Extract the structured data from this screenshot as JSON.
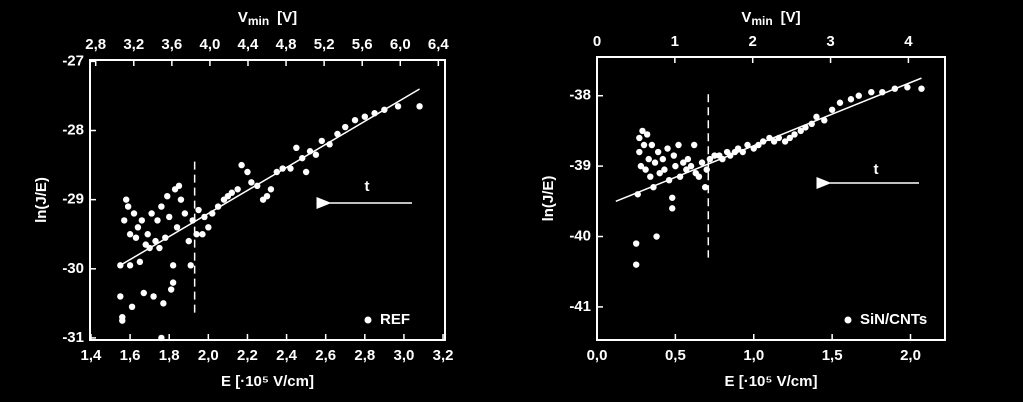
{
  "chart_data": [
    {
      "type": "scatter",
      "xlabel": "E [·10⁵ V/cm]",
      "ylabel": "ln(J/E)",
      "x2label": "V",
      "x2label_sub": "min",
      "x2label_unit": "[V]",
      "xlim": [
        1.395,
        3.21
      ],
      "xticks": [
        {
          "value": 1.4,
          "label": "1,4"
        },
        {
          "value": 1.6,
          "label": "1,6"
        },
        {
          "value": 1.8,
          "label": "1,8"
        },
        {
          "value": 2.0,
          "label": "2,0"
        },
        {
          "value": 2.2,
          "label": "2,2"
        },
        {
          "value": 2.4,
          "label": "2,4"
        },
        {
          "value": 2.6,
          "label": "2,6"
        },
        {
          "value": 2.8,
          "label": "2,8"
        },
        {
          "value": 3.0,
          "label": "3,0"
        },
        {
          "value": 3.2,
          "label": "3,2"
        }
      ],
      "x2lim": [
        2.74,
        6.47
      ],
      "x2ticks": [
        {
          "value": 2.8,
          "label": "2,8"
        },
        {
          "value": 3.2,
          "label": "3,2"
        },
        {
          "value": 3.6,
          "label": "3,6"
        },
        {
          "value": 4.0,
          "label": "4,0"
        },
        {
          "value": 4.4,
          "label": "4,4"
        },
        {
          "value": 4.8,
          "label": "4,8"
        },
        {
          "value": 5.2,
          "label": "5,2"
        },
        {
          "value": 5.6,
          "label": "5,6"
        },
        {
          "value": 6.0,
          "label": "6,0"
        },
        {
          "value": 6.4,
          "label": "6,4"
        }
      ],
      "ylim": [
        -31.03,
        -26.98
      ],
      "yticks": [
        -31,
        -30,
        -29,
        -28,
        -27
      ],
      "legend": "lower right",
      "annotation": "t",
      "fit": {
        "x": [
          1.55,
          3.08
        ],
        "y": [
          -29.95,
          -27.4
        ]
      },
      "vline": {
        "x": 1.93,
        "y": [
          -28.45,
          -30.7
        ]
      },
      "series": [
        {
          "name": "REF",
          "color": "#ffffff",
          "x": [
            1.55,
            1.55,
            1.56,
            1.56,
            1.57,
            1.58,
            1.59,
            1.6,
            1.6,
            1.61,
            1.62,
            1.63,
            1.64,
            1.65,
            1.66,
            1.67,
            1.68,
            1.69,
            1.7,
            1.71,
            1.72,
            1.73,
            1.74,
            1.75,
            1.76,
            1.76,
            1.77,
            1.78,
            1.79,
            1.8,
            1.81,
            1.82,
            1.82,
            1.83,
            1.84,
            1.85,
            1.86,
            1.88,
            1.9,
            1.91,
            1.92,
            1.94,
            1.95,
            1.97,
            1.98,
            2.0,
            2.02,
            2.05,
            2.08,
            2.1,
            2.12,
            2.15,
            2.17,
            2.2,
            2.22,
            2.25,
            2.28,
            2.3,
            2.32,
            2.35,
            2.38,
            2.42,
            2.45,
            2.48,
            2.5,
            2.52,
            2.55,
            2.58,
            2.62,
            2.66,
            2.7,
            2.75,
            2.8,
            2.85,
            2.9,
            2.97,
            3.08
          ],
          "values": [
            -29.95,
            -30.4,
            -30.7,
            -30.75,
            -29.3,
            -29.0,
            -29.1,
            -29.5,
            -29.95,
            -30.55,
            -29.2,
            -29.55,
            -29.4,
            -29.9,
            -29.3,
            -30.35,
            -29.65,
            -29.5,
            -29.7,
            -29.2,
            -30.4,
            -29.6,
            -29.3,
            -29.7,
            -29.1,
            -31.0,
            -30.5,
            -29.55,
            -28.95,
            -29.25,
            -30.3,
            -30.2,
            -29.95,
            -28.85,
            -29.4,
            -28.8,
            -29.0,
            -29.2,
            -29.6,
            -29.95,
            -29.3,
            -29.5,
            -29.15,
            -29.5,
            -29.25,
            -29.4,
            -29.2,
            -29.1,
            -29.0,
            -28.95,
            -28.9,
            -28.85,
            -28.5,
            -28.6,
            -28.75,
            -28.8,
            -29.0,
            -28.95,
            -28.85,
            -28.6,
            -28.55,
            -28.55,
            -28.25,
            -28.4,
            -28.6,
            -28.3,
            -28.35,
            -28.15,
            -28.2,
            -28.05,
            -27.95,
            -27.85,
            -27.8,
            -27.75,
            -27.7,
            -27.65,
            -27.65
          ]
        }
      ]
    },
    {
      "type": "scatter",
      "xlabel": "E [·10⁵ V/cm]",
      "ylabel": "ln(J/E)",
      "x2label": "V",
      "x2label_sub": "min",
      "x2label_unit": "[V]",
      "xlim": [
        0,
        2.22
      ],
      "xticks": [
        {
          "value": 0,
          "label": "0,0"
        },
        {
          "value": 0.5,
          "label": "0,5"
        },
        {
          "value": 1.0,
          "label": "1,0"
        },
        {
          "value": 1.5,
          "label": "1,5"
        },
        {
          "value": 2.0,
          "label": "2,0"
        }
      ],
      "x2lim": [
        0,
        4.47
      ],
      "x2ticks": [
        0,
        1,
        2,
        3,
        4
      ],
      "ylim": [
        -41.47,
        -37.45
      ],
      "yticks": [
        -41,
        -40,
        -39,
        -38
      ],
      "legend": "lower right",
      "annotation": "t",
      "fit": {
        "x": [
          0.12,
          2.07
        ],
        "y": [
          -39.5,
          -37.75
        ]
      },
      "vline": {
        "x": 0.71,
        "y": [
          -37.98,
          -40.3
        ]
      },
      "series": [
        {
          "name": "SiN/CNTs",
          "color": "#ffffff",
          "x": [
            0.25,
            0.25,
            0.26,
            0.27,
            0.27,
            0.28,
            0.29,
            0.3,
            0.31,
            0.32,
            0.33,
            0.34,
            0.35,
            0.36,
            0.37,
            0.38,
            0.39,
            0.4,
            0.42,
            0.43,
            0.45,
            0.46,
            0.48,
            0.48,
            0.49,
            0.5,
            0.52,
            0.53,
            0.55,
            0.57,
            0.58,
            0.6,
            0.62,
            0.63,
            0.65,
            0.67,
            0.69,
            0.7,
            0.72,
            0.75,
            0.78,
            0.8,
            0.83,
            0.85,
            0.88,
            0.9,
            0.93,
            0.96,
            1.0,
            1.03,
            1.06,
            1.1,
            1.13,
            1.16,
            1.2,
            1.23,
            1.26,
            1.3,
            1.33,
            1.37,
            1.4,
            1.45,
            1.5,
            1.55,
            1.62,
            1.67,
            1.75,
            1.82,
            1.9,
            1.98,
            2.07
          ],
          "values": [
            -40.4,
            -40.1,
            -39.4,
            -38.6,
            -38.8,
            -39.0,
            -38.5,
            -38.7,
            -39.05,
            -38.55,
            -38.9,
            -39.15,
            -38.7,
            -39.3,
            -38.95,
            -40.0,
            -38.8,
            -39.1,
            -38.9,
            -39.05,
            -38.75,
            -39.2,
            -39.6,
            -39.45,
            -38.85,
            -39.0,
            -38.7,
            -39.15,
            -38.95,
            -39.05,
            -38.9,
            -39.0,
            -38.7,
            -39.1,
            -39.15,
            -38.95,
            -39.3,
            -39.05,
            -38.9,
            -38.85,
            -38.85,
            -38.9,
            -38.8,
            -38.85,
            -38.8,
            -38.75,
            -38.8,
            -38.7,
            -38.75,
            -38.7,
            -38.65,
            -38.6,
            -38.65,
            -38.6,
            -38.65,
            -38.6,
            -38.55,
            -38.5,
            -38.45,
            -38.4,
            -38.3,
            -38.35,
            -38.2,
            -38.1,
            -38.05,
            -38.0,
            -37.95,
            -37.95,
            -37.9,
            -37.88,
            -37.9
          ]
        }
      ]
    }
  ]
}
